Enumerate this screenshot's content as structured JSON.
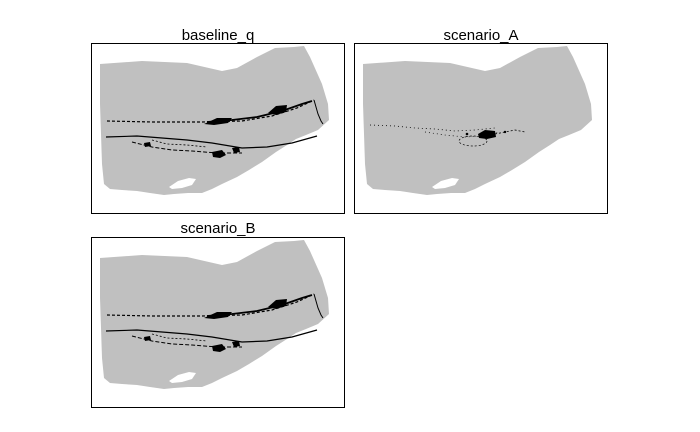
{
  "figure": {
    "panels": [
      {
        "id": "p1",
        "title": "baseline_q",
        "variant": "baseline"
      },
      {
        "id": "p2",
        "title": "scenario_A",
        "variant": "scenarioA"
      },
      {
        "id": "p3",
        "title": "scenario_B",
        "variant": "baseline"
      }
    ],
    "colors": {
      "land": "#c0c0c0",
      "features": "#000000",
      "background": "#ffffff",
      "frame": "#000000"
    }
  }
}
